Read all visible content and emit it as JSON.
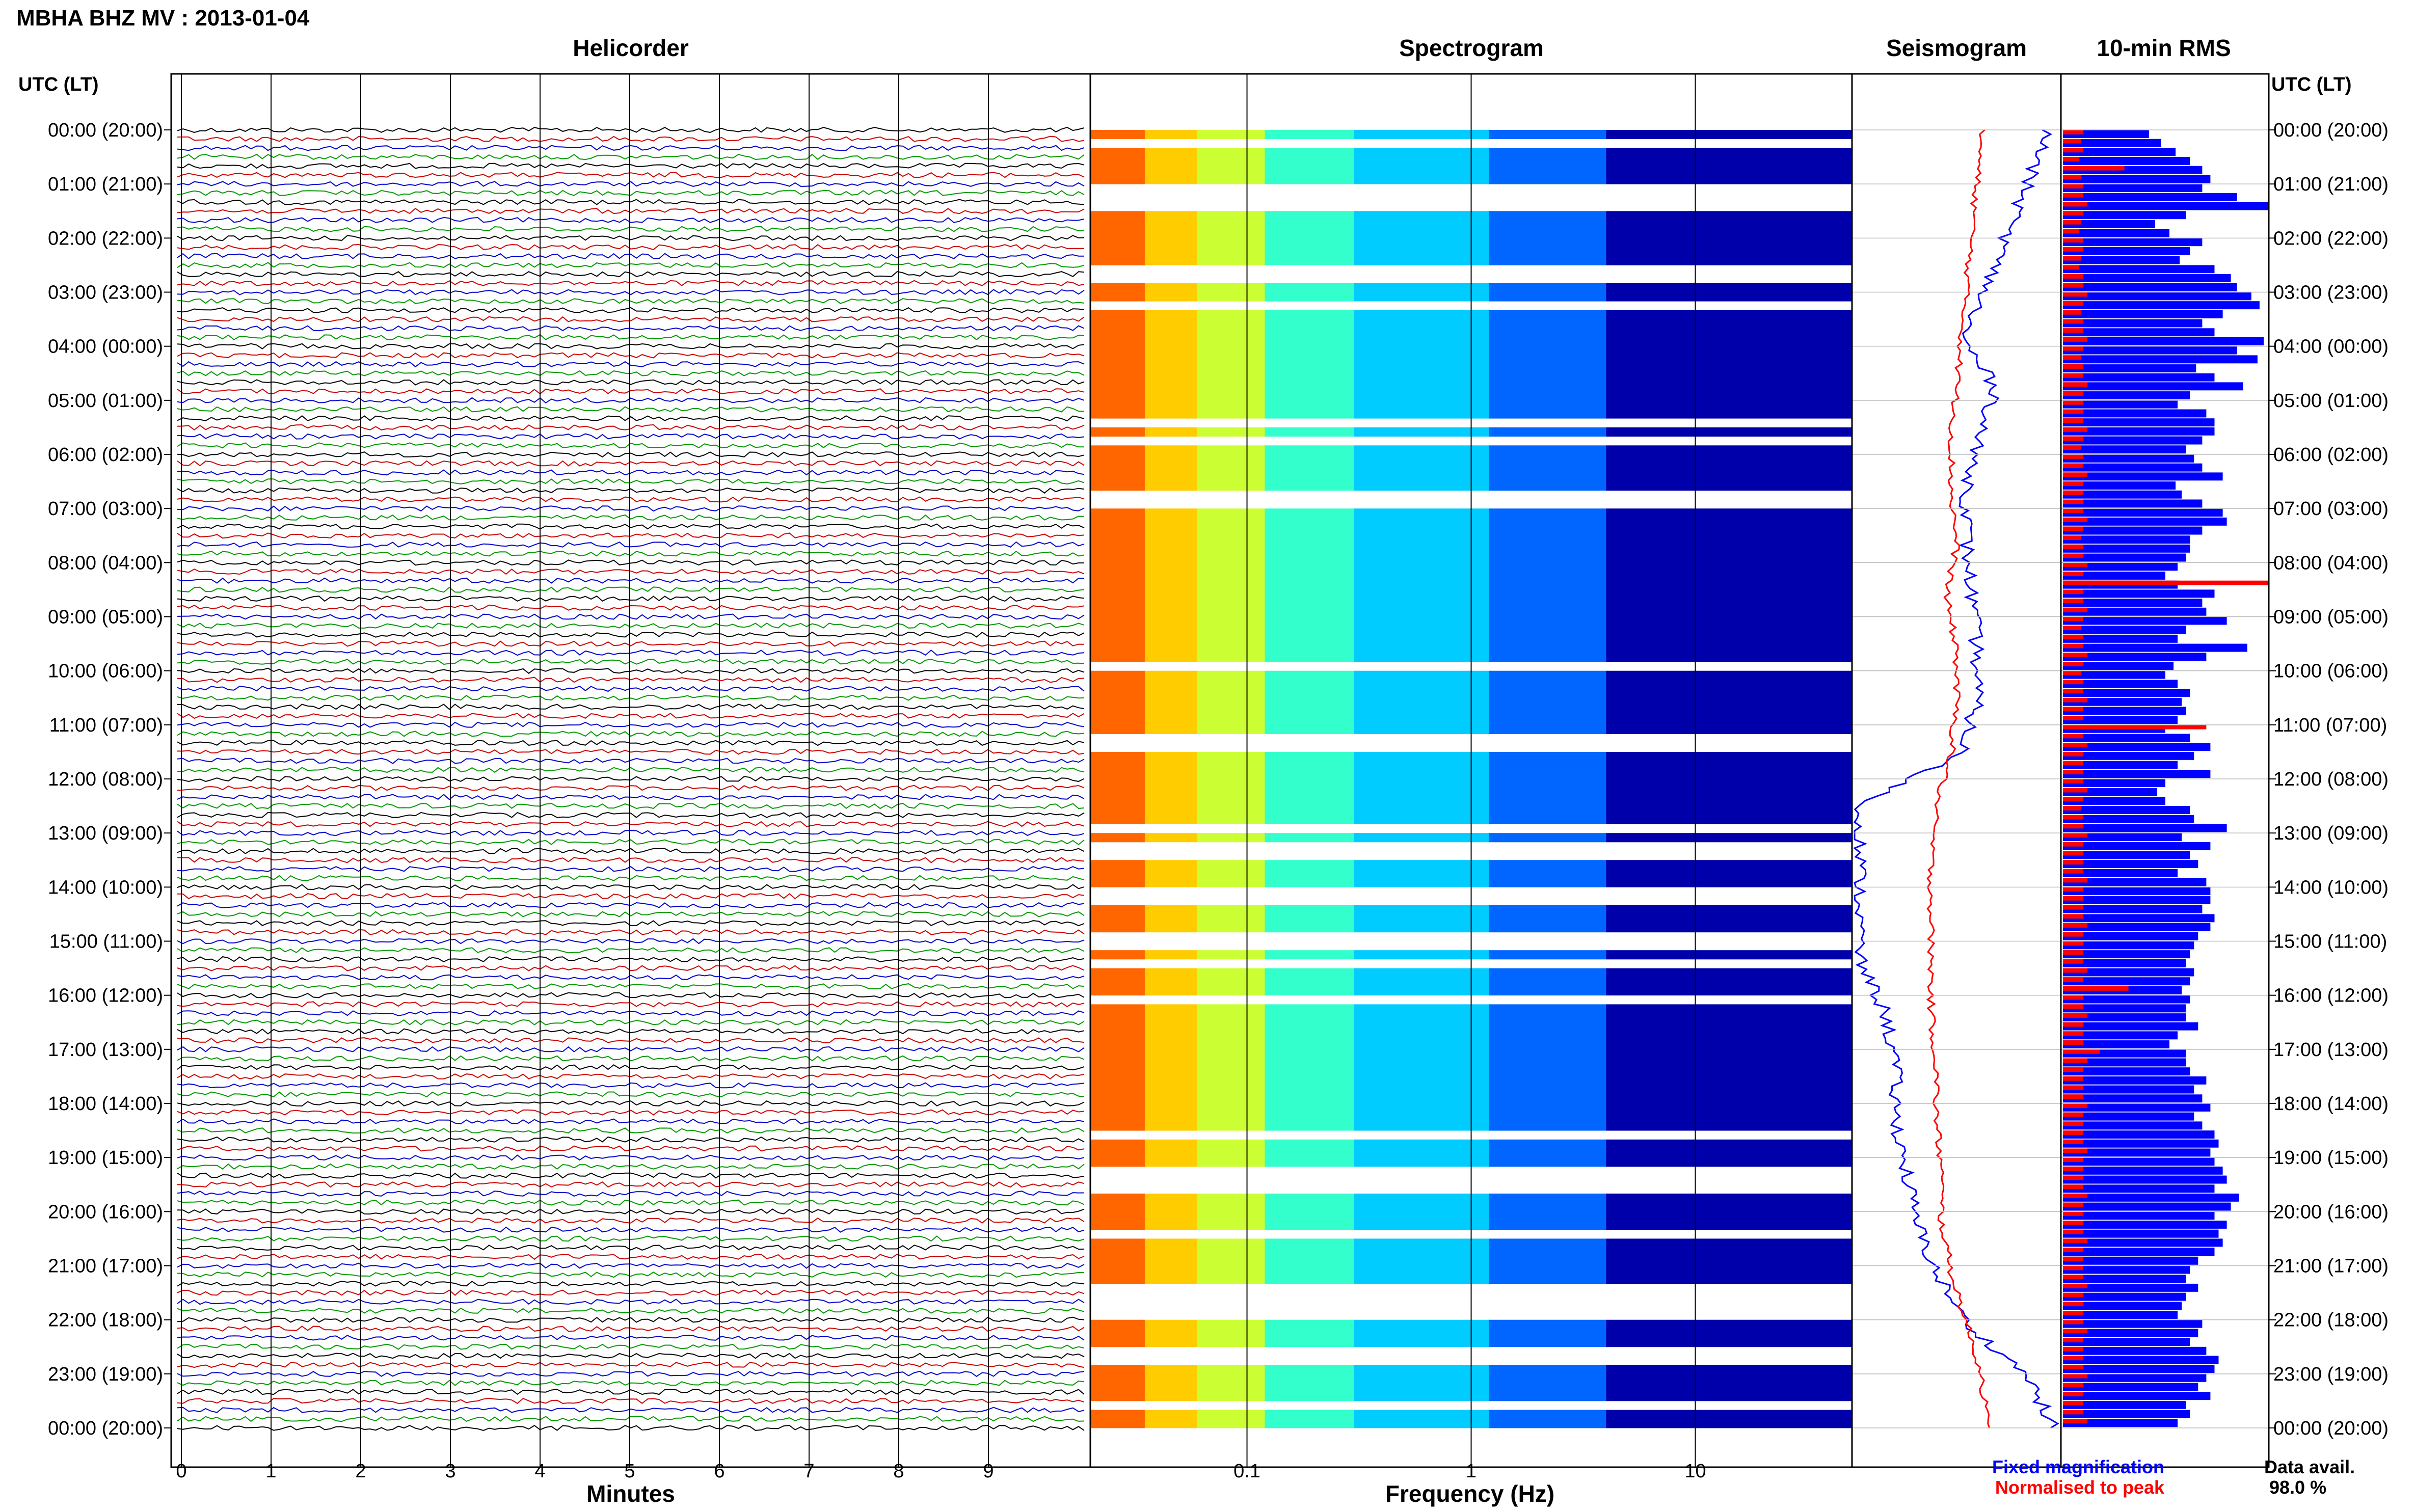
{
  "header": {
    "station": "MBHA BHZ MV : 2013-01-04",
    "utc_label_left": "UTC (LT)",
    "utc_label_right": "UTC (LT)"
  },
  "panels": {
    "helicorder": "Helicorder",
    "spectrogram": "Spectrogram",
    "seismogram": "Seismogram",
    "rms": "10-min RMS"
  },
  "axes": {
    "minutes_label": "Minutes",
    "frequency_label": "Frequency (Hz)",
    "minute_ticks": [
      "0",
      "1",
      "2",
      "3",
      "4",
      "5",
      "6",
      "7",
      "8",
      "9"
    ],
    "freq_ticks": [
      "0.1",
      "1",
      "10"
    ],
    "time_labels": [
      "00:00 (20:00)",
      "01:00 (21:00)",
      "02:00 (22:00)",
      "03:00 (23:00)",
      "04:00 (00:00)",
      "05:00 (01:00)",
      "06:00 (02:00)",
      "07:00 (03:00)",
      "08:00 (04:00)",
      "09:00 (05:00)",
      "10:00 (06:00)",
      "11:00 (07:00)",
      "12:00 (08:00)",
      "13:00 (09:00)",
      "14:00 (10:00)",
      "15:00 (11:00)",
      "16:00 (12:00)",
      "17:00 (13:00)",
      "18:00 (14:00)",
      "19:00 (15:00)",
      "20:00 (16:00)",
      "21:00 (17:00)",
      "22:00 (18:00)",
      "23:00 (19:00)",
      "00:00 (20:00)"
    ]
  },
  "legend": {
    "fixed": "Fixed magnification",
    "normalised": "Normalised to peak",
    "fixed_color": "#0000ff",
    "normalised_color": "#ff0000"
  },
  "availability": {
    "label": "Data avail.",
    "value": "98.0 %"
  },
  "chart_data": {
    "type": "helicorder_spectrogram_rms",
    "trace_colors": [
      "#000000",
      "#cc0000",
      "#0000cc",
      "#009900"
    ],
    "spectrogram_colors": [
      "#ff6600",
      "#ffcc00",
      "#ccff33",
      "#33ffcc",
      "#00ccff",
      "#0066ff",
      "#0000aa"
    ],
    "xlim_minutes": [
      0,
      10
    ],
    "xlim_freq_hz": [
      0.02,
      50
    ],
    "hours": 24,
    "gap_rows": [
      1,
      6,
      7,
      8,
      15,
      16,
      19,
      32,
      34,
      40,
      41,
      59,
      67,
      68,
      77,
      79,
      80,
      84,
      85,
      89,
      90,
      92,
      96,
      111,
      115,
      116,
      117,
      122,
      128,
      129,
      130,
      131,
      135,
      136,
      141
    ],
    "rms_fixed_rel": [
      0.42,
      0.48,
      0.55,
      0.62,
      0.68,
      0.72,
      0.68,
      0.85,
      1.0,
      0.6,
      0.45,
      0.52,
      0.68,
      0.62,
      0.57,
      0.74,
      0.82,
      0.85,
      0.92,
      0.96,
      0.78,
      0.68,
      0.74,
      0.98,
      0.85,
      0.95,
      0.65,
      0.74,
      0.88,
      0.62,
      0.56,
      0.7,
      0.74,
      0.74,
      0.68,
      0.6,
      0.64,
      0.68,
      0.78,
      0.55,
      0.58,
      0.68,
      0.78,
      0.8,
      0.68,
      0.62,
      0.62,
      0.6,
      0.56,
      0.5,
      0.56,
      0.74,
      0.68,
      0.7,
      0.8,
      0.6,
      0.56,
      0.9,
      0.7,
      0.54,
      0.5,
      0.56,
      0.62,
      0.58,
      0.6,
      0.56,
      0.5,
      0.62,
      0.72,
      0.64,
      0.56,
      0.72,
      0.5,
      0.46,
      0.5,
      0.62,
      0.64,
      0.8,
      0.58,
      0.72,
      0.62,
      0.66,
      0.56,
      0.7,
      0.72,
      0.72,
      0.68,
      0.74,
      0.72,
      0.66,
      0.64,
      0.62,
      0.6,
      0.64,
      0.62,
      0.58,
      0.62,
      0.6,
      0.6,
      0.66,
      0.56,
      0.52,
      0.6,
      0.6,
      0.62,
      0.7,
      0.64,
      0.68,
      0.72,
      0.64,
      0.68,
      0.74,
      0.76,
      0.72,
      0.74,
      0.78,
      0.8,
      0.74,
      0.86,
      0.82,
      0.74,
      0.8,
      0.76,
      0.78,
      0.74,
      0.66,
      0.62,
      0.6,
      0.66,
      0.6,
      0.58,
      0.56,
      0.68,
      0.66,
      0.62,
      0.7,
      0.76,
      0.74,
      0.7,
      0.66,
      0.72,
      0.6,
      0.62,
      0.56
    ],
    "rms_norm_rel": [
      0.1,
      0.09,
      0.1,
      0.08,
      0.3,
      0.09,
      0.1,
      0.1,
      0.12,
      0.1,
      0.09,
      0.08,
      0.1,
      0.1,
      0.09,
      0.08,
      0.1,
      0.1,
      0.12,
      0.1,
      0.09,
      0.1,
      0.1,
      0.12,
      0.1,
      0.09,
      0.1,
      0.1,
      0.12,
      0.1,
      0.1,
      0.1,
      0.1,
      0.12,
      0.1,
      0.09,
      0.1,
      0.1,
      0.12,
      0.1,
      0.1,
      0.1,
      0.1,
      0.12,
      0.1,
      0.09,
      0.1,
      0.1,
      0.12,
      0.1,
      1.0,
      0.1,
      0.1,
      0.12,
      0.1,
      0.09,
      0.1,
      0.1,
      0.12,
      0.1,
      0.09,
      0.1,
      0.1,
      0.12,
      0.1,
      0.1,
      0.7,
      0.1,
      0.12,
      0.1,
      0.1,
      0.1,
      0.1,
      0.12,
      0.1,
      0.09,
      0.1,
      0.1,
      0.12,
      0.1,
      0.1,
      0.1,
      0.1,
      0.12,
      0.1,
      0.1,
      0.1,
      0.1,
      0.12,
      0.1,
      0.1,
      0.1,
      0.1,
      0.12,
      0.1,
      0.32,
      0.1,
      0.1,
      0.12,
      0.1,
      0.1,
      0.1,
      0.18,
      0.12,
      0.1,
      0.1,
      0.1,
      0.1,
      0.12,
      0.1,
      0.1,
      0.1,
      0.1,
      0.12,
      0.1,
      0.1,
      0.1,
      0.1,
      0.12,
      0.1,
      0.1,
      0.1,
      0.1,
      0.12,
      0.1,
      0.1,
      0.1,
      0.1,
      0.12,
      0.1,
      0.1,
      0.1,
      0.1,
      0.12,
      0.1,
      0.1,
      0.1,
      0.1,
      0.12,
      0.1,
      0.1,
      0.1,
      0.1,
      0.12
    ]
  }
}
